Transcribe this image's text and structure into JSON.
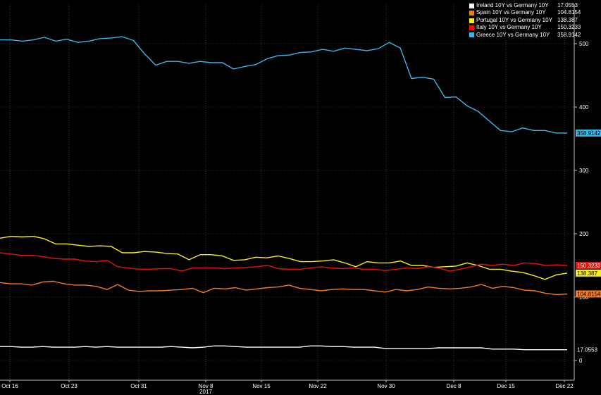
{
  "chart_data": {
    "type": "line",
    "x_ticks": [
      "Oct 16",
      "Oct 23",
      "Oct 31",
      "Nov 8",
      "Nov 15",
      "Nov 22",
      "Nov 30",
      "Dec 8",
      "Dec 15",
      "Dec 22"
    ],
    "x_year_label": "2017",
    "y_ticks": [
      0,
      100,
      200,
      300,
      400,
      500
    ],
    "ylim": [
      -20,
      580
    ],
    "grid": true,
    "legend_position": "top-right",
    "series": [
      {
        "name": "Ireland 10Y vs Germany 10Y",
        "last_label": "17.0553",
        "color": "#ffffff",
        "values": [
          22,
          22,
          21,
          21,
          22,
          21,
          21,
          21,
          22,
          21,
          22,
          21,
          21,
          21,
          21,
          21,
          22,
          21,
          20,
          21,
          23,
          23,
          22,
          21,
          21,
          21,
          21,
          21,
          21,
          23,
          23,
          22,
          22,
          21,
          21,
          21,
          19,
          19,
          19,
          19,
          19,
          20,
          20,
          20,
          20,
          20,
          18,
          18,
          18,
          17,
          17,
          17,
          17,
          17
        ]
      },
      {
        "name": "Spain 10Y vs Germany 10Y",
        "last_label": "104.8154",
        "color": "#f47c20",
        "values": [
          123,
          121,
          121,
          119,
          124,
          125,
          121,
          119,
          119,
          117,
          112,
          120,
          111,
          109,
          110,
          110,
          111,
          112,
          114,
          107,
          114,
          113,
          115,
          111,
          113,
          115,
          116,
          119,
          114,
          112,
          110,
          112,
          113,
          112,
          112,
          110,
          108,
          112,
          110,
          112,
          116,
          114,
          113,
          114,
          116,
          120,
          114,
          117,
          115,
          111,
          110,
          106,
          104,
          105
        ]
      },
      {
        "name": "Portugal 10Y vs Germany 10Y",
        "last_label": "138.387",
        "color": "#f5ef1d",
        "values": [
          193,
          196,
          195,
          196,
          192,
          184,
          184,
          182,
          180,
          181,
          180,
          170,
          170,
          172,
          171,
          169,
          168,
          159,
          167,
          167,
          165,
          158,
          159,
          163,
          162,
          165,
          161,
          156,
          156,
          157,
          159,
          154,
          148,
          156,
          154,
          154,
          157,
          150,
          150,
          147,
          148,
          149,
          154,
          150,
          144,
          144,
          141,
          139,
          134,
          128,
          135,
          138
        ]
      },
      {
        "name": "Italy 10Y vs Germany 10Y",
        "last_label": "150.3233",
        "color": "#e8120c",
        "values": [
          170,
          168,
          166,
          166,
          164,
          161,
          160,
          160,
          157,
          156,
          158,
          148,
          146,
          144,
          144,
          145,
          145,
          141,
          146,
          146,
          146,
          145,
          146,
          147,
          148,
          150,
          145,
          144,
          144,
          146,
          148,
          146,
          145,
          146,
          144,
          144,
          142,
          144,
          146,
          145,
          148,
          146,
          141,
          144,
          148,
          152,
          150,
          152,
          150,
          154,
          153,
          150,
          151,
          150
        ]
      },
      {
        "name": "Greece 10Y vs Germany 10Y",
        "last_label": "358.9142",
        "color": "#3cb4e5",
        "values": [
          506,
          506,
          504,
          506,
          510,
          504,
          507,
          502,
          504,
          508,
          509,
          511,
          505,
          484,
          466,
          472,
          472,
          469,
          472,
          470,
          470,
          460,
          464,
          467,
          476,
          481,
          482,
          486,
          487,
          491,
          488,
          493,
          491,
          489,
          492,
          502,
          493,
          445,
          447,
          444,
          415,
          416,
          402,
          393,
          378,
          363,
          361,
          367,
          363,
          363,
          359,
          359
        ]
      }
    ]
  }
}
